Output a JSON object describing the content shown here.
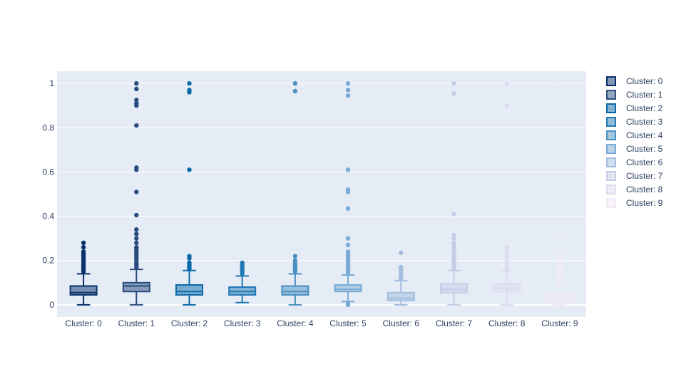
{
  "chart_data": {
    "type": "box",
    "title": "",
    "xlabel": "",
    "ylabel": "",
    "ylim": [
      -0.055,
      1.055
    ],
    "yticks": [
      0,
      0.2,
      0.4,
      0.6,
      0.8,
      1
    ],
    "ytick_labels": [
      "0",
      "0.2",
      "0.4",
      "0.6",
      "0.8",
      "1"
    ],
    "grid": true,
    "legend_position": "right",
    "series": [
      {
        "name": "Cluster: 0",
        "color": "#08306b",
        "opacity": 1.0,
        "min": 0.0,
        "q1": 0.045,
        "median": 0.055,
        "q3": 0.085,
        "max": 0.14,
        "outliers": [
          0.15,
          0.16,
          0.17,
          0.18,
          0.19,
          0.2,
          0.21,
          0.22,
          0.23,
          0.24,
          0.26,
          0.28
        ]
      },
      {
        "name": "Cluster: 1",
        "color": "#08306b",
        "opacity": 0.85,
        "min": 0.0,
        "q1": 0.06,
        "median": 0.085,
        "q3": 0.1,
        "max": 0.16,
        "outliers": [
          0.17,
          0.18,
          0.19,
          0.2,
          0.21,
          0.22,
          0.23,
          0.24,
          0.25,
          0.26,
          0.28,
          0.3,
          0.32,
          0.34,
          0.405,
          0.51,
          0.61,
          0.62,
          0.81,
          0.9,
          0.91,
          0.925,
          0.975,
          1.0
        ]
      },
      {
        "name": "Cluster: 2",
        "color": "#0b6aa8",
        "opacity": 1.0,
        "min": 0.0,
        "q1": 0.045,
        "median": 0.06,
        "q3": 0.09,
        "max": 0.155,
        "outliers": [
          0.16,
          0.17,
          0.18,
          0.19,
          0.21,
          0.22,
          0.61,
          0.96,
          0.97,
          1.0
        ]
      },
      {
        "name": "Cluster: 3",
        "color": "#1f78b4",
        "opacity": 1.0,
        "min": 0.01,
        "q1": 0.045,
        "median": 0.06,
        "q3": 0.08,
        "max": 0.13,
        "outliers": [
          0.14,
          0.15,
          0.16,
          0.17,
          0.18,
          0.19
        ]
      },
      {
        "name": "Cluster: 4",
        "color": "#4a90c2",
        "opacity": 1.0,
        "min": 0.0,
        "q1": 0.045,
        "median": 0.06,
        "q3": 0.085,
        "max": 0.14,
        "outliers": [
          0.15,
          0.16,
          0.17,
          0.18,
          0.19,
          0.2,
          0.22,
          0.965,
          1.0
        ]
      },
      {
        "name": "Cluster: 5",
        "color": "#7aaad6",
        "opacity": 1.0,
        "min": 0.015,
        "q1": 0.06,
        "median": 0.07,
        "q3": 0.09,
        "max": 0.135,
        "outliers": [
          0.0,
          0.005,
          0.14,
          0.15,
          0.16,
          0.17,
          0.18,
          0.19,
          0.2,
          0.21,
          0.22,
          0.23,
          0.24,
          0.27,
          0.3,
          0.435,
          0.51,
          0.52,
          0.61,
          0.945,
          0.97,
          1.0
        ]
      },
      {
        "name": "Cluster: 6",
        "color": "#a3bde0",
        "opacity": 1.0,
        "min": 0.0,
        "q1": 0.02,
        "median": 0.03,
        "q3": 0.055,
        "max": 0.11,
        "outliers": [
          0.12,
          0.13,
          0.14,
          0.15,
          0.16,
          0.17,
          0.235
        ]
      },
      {
        "name": "Cluster: 7",
        "color": "#c6cce6",
        "opacity": 1.0,
        "min": 0.0,
        "q1": 0.055,
        "median": 0.07,
        "q3": 0.095,
        "max": 0.155,
        "outliers": [
          0.16,
          0.17,
          0.18,
          0.19,
          0.2,
          0.21,
          0.22,
          0.23,
          0.24,
          0.25,
          0.26,
          0.27,
          0.28,
          0.3,
          0.315,
          0.41,
          0.955,
          1.0
        ]
      },
      {
        "name": "Cluster: 8",
        "color": "#dcdcee",
        "opacity": 1.0,
        "min": 0.0,
        "q1": 0.06,
        "median": 0.075,
        "q3": 0.095,
        "max": 0.15,
        "outliers": [
          0.0,
          0.16,
          0.17,
          0.18,
          0.19,
          0.2,
          0.22,
          0.24,
          0.26,
          0.9,
          1.0
        ]
      },
      {
        "name": "Cluster: 9",
        "color": "#f2eaf4",
        "opacity": 1.0,
        "min": 0.0,
        "q1": 0.015,
        "median": 0.03,
        "q3": 0.05,
        "max": 0.1,
        "outliers": [
          0.11,
          0.12,
          0.13,
          0.14,
          0.15,
          0.16,
          0.17,
          0.18,
          0.19,
          0.2,
          0.21,
          0.22,
          0.305,
          0.81,
          1.0
        ]
      }
    ]
  }
}
